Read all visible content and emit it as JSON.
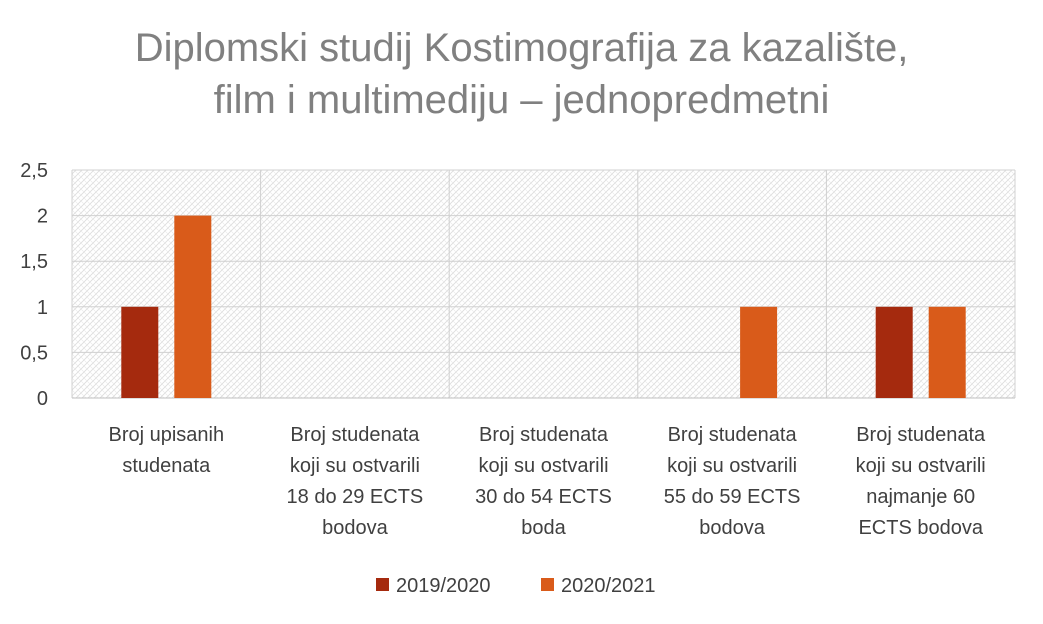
{
  "chart_data": {
    "type": "bar",
    "title_lines": [
      "Diplomski studij Kostimografija za kazalište,",
      "film i multimediju – jednopredmetni"
    ],
    "categories": [
      [
        "Broj upisanih",
        "studenata"
      ],
      [
        "Broj studenata",
        "koji su ostvarili",
        "18 do 29 ECTS",
        "bodova"
      ],
      [
        "Broj studenata",
        "koji su ostvarili",
        "30 do 54 ECTS",
        "boda"
      ],
      [
        "Broj studenata",
        "koji su ostvarili",
        "55 do 59 ECTS",
        "bodova"
      ],
      [
        "Broj studenata",
        "koji su ostvarili",
        "najmanje 60",
        "ECTS bodova"
      ]
    ],
    "series": [
      {
        "name": "2019/2020",
        "color": "#A52A0E",
        "values": [
          1,
          0,
          0,
          0,
          1
        ]
      },
      {
        "name": "2020/2021",
        "color": "#D95B1A",
        "values": [
          2,
          0,
          0,
          1,
          1
        ]
      }
    ],
    "yticks": [
      "0",
      "0,5",
      "1",
      "1,5",
      "2",
      "2,5"
    ],
    "ylim": [
      0,
      2.5
    ],
    "xlabel": "",
    "ylabel": "",
    "grid": true,
    "background_pattern": "light-hatch",
    "legend_position": "bottom"
  }
}
